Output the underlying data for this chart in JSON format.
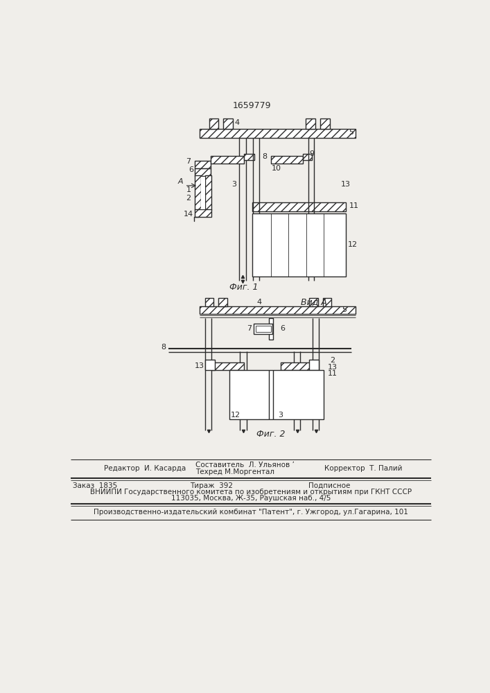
{
  "patent_number": "1659779",
  "fig1_caption": "Фиг. 1",
  "fig2_caption": "Фиг. 2",
  "fig2_title": "Вид А",
  "bg_color": "#f0eeea",
  "line_color": "#2a2a2a",
  "footer_line1_left": "Редактор  И. Касарда",
  "footer_line1_mid1": "Составитель  Л. Ульянов ’",
  "footer_line1_mid2": "Техред М.Моргентал",
  "footer_line1_right": "Корректор  Т. Палий",
  "footer_line2_col1": "Заказ  1835",
  "footer_line2_col2": "Тираж  392",
  "footer_line2_col3": "Подписное",
  "footer_line3": "ВНИИПИ Государственного комитета по изобретениям и открытиям при ГКНТ СССР",
  "footer_line4": "113035, Москва, Ж-35, Раушская наб., 4/5",
  "footer_line5": "Производственно-издательский комбинат \"Патент\", г. Ужгород, ул.Гагарина, 101"
}
